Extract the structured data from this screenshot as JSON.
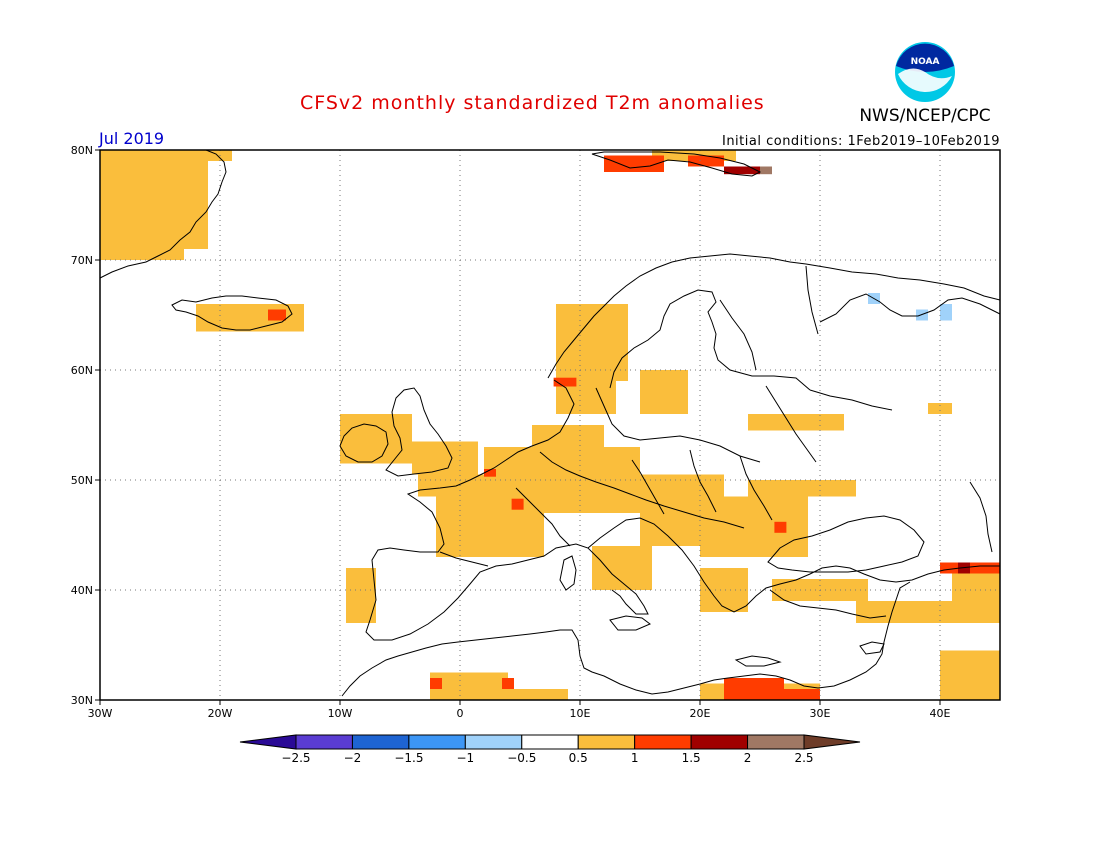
{
  "header": {
    "title": "CFSv2 monthly standardized T2m anomalies",
    "month": "Jul 2019",
    "initial_conditions": "Initial conditions: 1Feb2019–10Feb2019",
    "org": "NWS/NCEP/CPC",
    "logo_text": "NOAA"
  },
  "map": {
    "lon_range": [
      -30,
      45
    ],
    "lat_range": [
      30,
      80
    ],
    "lon_ticks": [
      {
        "lon": -30,
        "label": "30W"
      },
      {
        "lon": -20,
        "label": "20W"
      },
      {
        "lon": -10,
        "label": "10W"
      },
      {
        "lon": 0,
        "label": "0"
      },
      {
        "lon": 10,
        "label": "10E"
      },
      {
        "lon": 20,
        "label": "20E"
      },
      {
        "lon": 30,
        "label": "30E"
      },
      {
        "lon": 40,
        "label": "40E"
      }
    ],
    "lat_ticks": [
      {
        "lat": 80,
        "label": "80N"
      },
      {
        "lat": 70,
        "label": "70N"
      },
      {
        "lat": 60,
        "label": "60N"
      },
      {
        "lat": 50,
        "label": "50N"
      },
      {
        "lat": 40,
        "label": "40N"
      },
      {
        "lat": 30,
        "label": "30N"
      }
    ],
    "anomaly_cells": [
      {
        "lon": [
          -30,
          -23
        ],
        "lat": [
          70,
          80
        ],
        "level": 0.75
      },
      {
        "lon": [
          -23,
          -21
        ],
        "lat": [
          71,
          79
        ],
        "level": 0.75
      },
      {
        "lon": [
          -23,
          -19
        ],
        "lat": [
          79,
          80
        ],
        "level": 0.75
      },
      {
        "lon": [
          -22,
          -13
        ],
        "lat": [
          63.5,
          66
        ],
        "level": 0.75
      },
      {
        "lon": [
          -16,
          -14.5
        ],
        "lat": [
          64.5,
          65.5
        ],
        "level": 1.25
      },
      {
        "lon": [
          -10,
          -4
        ],
        "lat": [
          51.5,
          56
        ],
        "level": 0.75
      },
      {
        "lon": [
          -4,
          1.5
        ],
        "lat": [
          50.5,
          53.5
        ],
        "level": 0.75
      },
      {
        "lon": [
          -3.5,
          2
        ],
        "lat": [
          48.5,
          50.5
        ],
        "level": 0.75
      },
      {
        "lon": [
          -2,
          7
        ],
        "lat": [
          43,
          48.5
        ],
        "level": 0.75
      },
      {
        "lon": [
          2,
          15
        ],
        "lat": [
          47,
          53
        ],
        "level": 0.75
      },
      {
        "lon": [
          6,
          12
        ],
        "lat": [
          53,
          55
        ],
        "level": 0.75
      },
      {
        "lon": [
          8,
          13
        ],
        "lat": [
          56,
          59
        ],
        "level": 0.75
      },
      {
        "lon": [
          8,
          14
        ],
        "lat": [
          59,
          66
        ],
        "level": 0.75
      },
      {
        "lon": [
          15,
          19
        ],
        "lat": [
          56,
          60
        ],
        "level": 0.75
      },
      {
        "lon": [
          15,
          22
        ],
        "lat": [
          44,
          50.5
        ],
        "level": 0.75
      },
      {
        "lon": [
          20,
          29
        ],
        "lat": [
          43,
          48.5
        ],
        "level": 0.75
      },
      {
        "lon": [
          24,
          33
        ],
        "lat": [
          48.5,
          50
        ],
        "level": 0.75
      },
      {
        "lon": [
          24,
          32
        ],
        "lat": [
          54.5,
          56
        ],
        "level": 0.75
      },
      {
        "lon": [
          11,
          16
        ],
        "lat": [
          40,
          44
        ],
        "level": 0.75
      },
      {
        "lon": [
          20,
          24
        ],
        "lat": [
          38,
          42
        ],
        "level": 0.75
      },
      {
        "lon": [
          26,
          34
        ],
        "lat": [
          39,
          41
        ],
        "level": 0.75
      },
      {
        "lon": [
          33,
          45
        ],
        "lat": [
          37,
          39
        ],
        "level": 0.75
      },
      {
        "lon": [
          41,
          45
        ],
        "lat": [
          39,
          42
        ],
        "level": 0.75
      },
      {
        "lon": [
          40,
          45
        ],
        "lat": [
          30,
          34.5
        ],
        "level": 0.75
      },
      {
        "lon": [
          -9.5,
          -7
        ],
        "lat": [
          37,
          42
        ],
        "level": 0.75
      },
      {
        "lon": [
          -2.5,
          4
        ],
        "lat": [
          30,
          32.5
        ],
        "level": 0.75
      },
      {
        "lon": [
          4,
          9
        ],
        "lat": [
          30,
          31
        ],
        "level": 0.75
      },
      {
        "lon": [
          20,
          30
        ],
        "lat": [
          30,
          31.5
        ],
        "level": 0.75
      },
      {
        "lon": [
          39,
          41
        ],
        "lat": [
          56,
          57
        ],
        "level": 0.75
      },
      {
        "lon": [
          16,
          23
        ],
        "lat": [
          79,
          80
        ],
        "level": 0.75
      },
      {
        "lon": [
          2,
          3
        ],
        "lat": [
          50.3,
          51
        ],
        "level": 1.25
      },
      {
        "lon": [
          4.3,
          5.3
        ],
        "lat": [
          47.3,
          48.3
        ],
        "level": 1.25
      },
      {
        "lon": [
          7.8,
          9.7
        ],
        "lat": [
          58.5,
          59.3
        ],
        "level": 1.25
      },
      {
        "lon": [
          26.2,
          27.2
        ],
        "lat": [
          45.2,
          46.2
        ],
        "level": 1.25
      },
      {
        "lon": [
          22,
          27
        ],
        "lat": [
          30,
          32
        ],
        "level": 1.25
      },
      {
        "lon": [
          27,
          30
        ],
        "lat": [
          30,
          31
        ],
        "level": 1.25
      },
      {
        "lon": [
          -2.5,
          -1.5
        ],
        "lat": [
          31,
          32
        ],
        "level": 1.25
      },
      {
        "lon": [
          3.5,
          4.5
        ],
        "lat": [
          31,
          32
        ],
        "level": 1.25
      },
      {
        "lon": [
          12,
          17
        ],
        "lat": [
          78,
          79.5
        ],
        "level": 1.25
      },
      {
        "lon": [
          19,
          22
        ],
        "lat": [
          78.5,
          79.5
        ],
        "level": 1.25
      },
      {
        "lon": [
          40,
          45
        ],
        "lat": [
          41.5,
          42.5
        ],
        "level": 1.25
      },
      {
        "lon": [
          22,
          25
        ],
        "lat": [
          77.8,
          78.5
        ],
        "level": 1.75
      },
      {
        "lon": [
          41.5,
          42.5
        ],
        "lat": [
          41.5,
          42.5
        ],
        "level": 1.75
      },
      {
        "lon": [
          25,
          26
        ],
        "lat": [
          77.8,
          78.5
        ],
        "level": 2.25
      },
      {
        "lon": [
          34,
          35
        ],
        "lat": [
          66,
          67
        ],
        "level": -0.75
      },
      {
        "lon": [
          38,
          39
        ],
        "lat": [
          64.5,
          65.5
        ],
        "level": -0.75
      },
      {
        "lon": [
          40,
          41
        ],
        "lat": [
          64.5,
          66
        ],
        "level": -0.75
      }
    ]
  },
  "colorbar": {
    "colors": [
      "#2a0a96",
      "#5a3cd2",
      "#1e64d2",
      "#3c96f5",
      "#a0d2fa",
      "#ffffff",
      "#fabe3c",
      "#ff3c00",
      "#a00000",
      "#a07864",
      "#6e3c28"
    ],
    "labels": [
      "−2.5",
      "−2",
      "−1.5",
      "−1",
      "−0.5",
      "0.5",
      "1",
      "1.5",
      "2",
      "2.5"
    ],
    "thresholds": [
      -2.5,
      -2,
      -1.5,
      -1,
      -0.5,
      0.5,
      1,
      1.5,
      2,
      2.5
    ]
  }
}
